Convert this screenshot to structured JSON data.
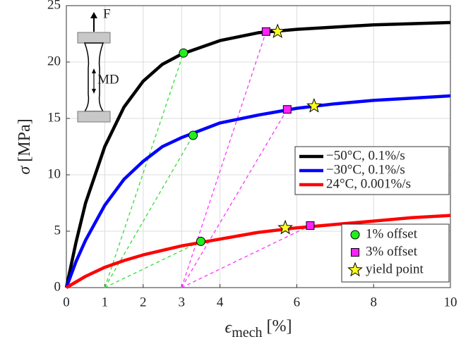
{
  "chart_data": {
    "type": "line",
    "ylabel": {
      "symbol": "σ",
      "unit": "[MPa]"
    },
    "xlabel": {
      "symbol": "ϵ",
      "subscript": "mech",
      "unit": "[%]"
    },
    "xlim": [
      0,
      10
    ],
    "ylim": [
      0,
      25
    ],
    "xticks": [
      0,
      1,
      2,
      3,
      4,
      6,
      8,
      10
    ],
    "yticks": [
      0,
      5,
      10,
      15,
      20,
      25
    ],
    "grid": true,
    "x": [
      0,
      0.25,
      0.5,
      1,
      1.5,
      2,
      2.5,
      3,
      4,
      5,
      6,
      7,
      8,
      9,
      10
    ],
    "series": [
      {
        "name": "−50°C, 0.1%/s",
        "color": "#000000",
        "values": [
          0,
          4,
          7.5,
          12.5,
          16,
          18.3,
          19.8,
          20.7,
          21.9,
          22.6,
          22.9,
          23.1,
          23.3,
          23.4,
          23.5
        ]
      },
      {
        "name": "−30°C, 0.1%/s",
        "color": "#0000ff",
        "values": [
          0,
          2.3,
          4.2,
          7.3,
          9.6,
          11.2,
          12.5,
          13.3,
          14.6,
          15.3,
          15.9,
          16.3,
          16.6,
          16.8,
          17.0
        ]
      },
      {
        "name": "24°C, 0.001%/s",
        "color": "#ff0000",
        "values": [
          0,
          0.5,
          1.0,
          1.8,
          2.4,
          2.9,
          3.3,
          3.7,
          4.3,
          4.9,
          5.3,
          5.6,
          5.9,
          6.2,
          6.4
        ]
      }
    ],
    "markers": [
      {
        "name": "1% offset",
        "shape": "circle",
        "color": "#22ee22",
        "line_color": "#33dd33",
        "offset": 1,
        "x": [
          3.05,
          3.3,
          3.5
        ],
        "values": [
          20.8,
          13.5,
          4.1
        ]
      },
      {
        "name": "3% offset",
        "shape": "square",
        "color": "#ff22ff",
        "line_color": "#ff33ff",
        "offset": 3,
        "x": [
          5.2,
          5.75,
          6.35
        ],
        "values": [
          22.7,
          15.8,
          5.5
        ]
      },
      {
        "name": "yield point",
        "shape": "star",
        "color": "#ffff22",
        "x": [
          5.5,
          6.45,
          5.7
        ],
        "values": [
          22.7,
          16.1,
          5.3
        ]
      }
    ],
    "inset": {
      "force_label": "F",
      "direction_label": "MD"
    }
  }
}
